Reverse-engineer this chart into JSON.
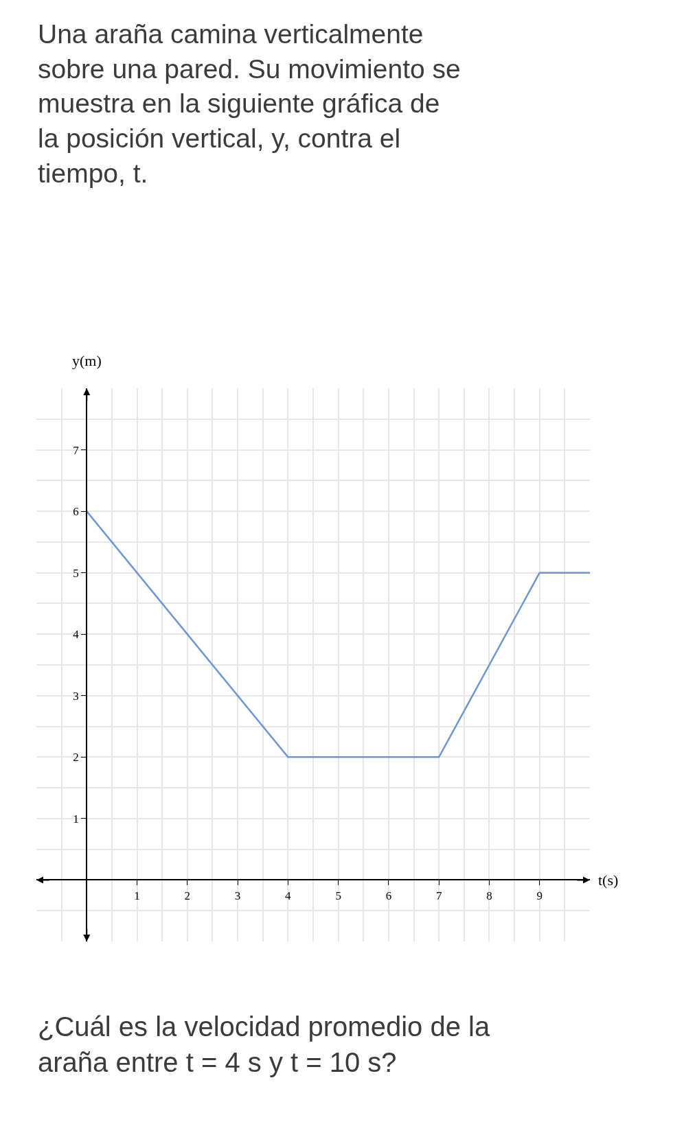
{
  "chart_data": {
    "type": "line",
    "title": "Una araña camina verticalmente sobre una pared. Su movimiento se muestra en la siguiente gráfica de la posición vertical, y, contra el tiempo, t.",
    "xlabel": "t(s)",
    "ylabel": "y(m)",
    "annotations": [
      "¿Cuál es la velocidad promedio de la araña entre t = 4 s y t = 10 s?"
    ],
    "x": [
      0,
      4,
      7,
      9,
      10
    ],
    "series": [
      {
        "color": "#6b96d2",
        "values": [
          6,
          2,
          2,
          5,
          5
        ]
      }
    ],
    "xlim": [
      -1,
      10
    ],
    "ylim": [
      -1,
      8
    ],
    "xticks": [
      1,
      2,
      3,
      4,
      5,
      6,
      7,
      8,
      9
    ],
    "yticks": [
      1,
      2,
      3,
      4,
      5,
      6,
      7
    ],
    "grid": true,
    "marker": "none",
    "line_style": "solid"
  }
}
